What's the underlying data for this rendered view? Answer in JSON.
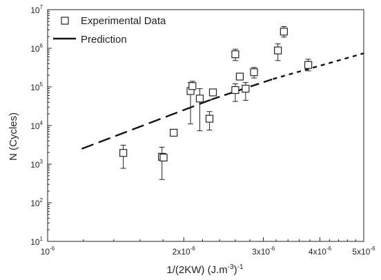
{
  "chart_data": {
    "type": "scatter",
    "title": "",
    "xlabel": "1/(2KW) (J.m",
    "xlabel_sup": "-3",
    "xlabel_tail": ")",
    "xlabel_sup2": "-1",
    "ylabel": "N (Cycles)",
    "x_scale": "log",
    "y_scale": "log",
    "xlim": [
      1e-06,
      5e-06
    ],
    "ylim": [
      10,
      10000000
    ],
    "grid": false,
    "legend_position": "top-left",
    "x_ticks": [
      {
        "value": 1e-06,
        "mantissa": "10",
        "exp": "-6"
      },
      {
        "value": 2e-06,
        "mantissa": "2x10",
        "exp": "-6"
      },
      {
        "value": 3e-06,
        "mantissa": "3x10",
        "exp": "-6"
      },
      {
        "value": 4e-06,
        "mantissa": "4x10",
        "exp": "-6"
      },
      {
        "value": 5e-06,
        "mantissa": "5x10",
        "exp": "-6"
      }
    ],
    "y_ticks": [
      {
        "value": 10,
        "mantissa": "10",
        "exp": "1"
      },
      {
        "value": 100,
        "mantissa": "10",
        "exp": "2"
      },
      {
        "value": 1000,
        "mantissa": "10",
        "exp": "3"
      },
      {
        "value": 10000,
        "mantissa": "10",
        "exp": "4"
      },
      {
        "value": 100000,
        "mantissa": "10",
        "exp": "5"
      },
      {
        "value": 1000000,
        "mantissa": "10",
        "exp": "6"
      },
      {
        "value": 10000000,
        "mantissa": "10",
        "exp": "7"
      }
    ],
    "series": [
      {
        "name": "Experimental Data",
        "marker": "open-square",
        "color": "#222222",
        "points": [
          {
            "x": 1.47e-06,
            "y": 1950,
            "ylow": 780,
            "yhigh": 3100
          },
          {
            "x": 1.79e-06,
            "y": 1550,
            "ylow": 400,
            "yhigh": 2750
          },
          {
            "x": 1.805e-06,
            "y": 1480,
            "ylow": 1480,
            "yhigh": 1480
          },
          {
            "x": 1.9e-06,
            "y": 6500,
            "ylow": 6500,
            "yhigh": 6500
          },
          {
            "x": 2.07e-06,
            "y": 78000,
            "ylow": 11000,
            "yhigh": 130000
          },
          {
            "x": 2.09e-06,
            "y": 105000,
            "ylow": 95000,
            "yhigh": 140000
          },
          {
            "x": 2.17e-06,
            "y": 50000,
            "ylow": 7300,
            "yhigh": 90000
          },
          {
            "x": 2.28e-06,
            "y": 15000,
            "ylow": 7600,
            "yhigh": 23000
          },
          {
            "x": 2.32e-06,
            "y": 72000,
            "ylow": 72000,
            "yhigh": 72000
          },
          {
            "x": 2.6e-06,
            "y": 700000,
            "ylow": 480000,
            "yhigh": 950000
          },
          {
            "x": 2.6e-06,
            "y": 83000,
            "ylow": 42000,
            "yhigh": 120000
          },
          {
            "x": 2.66e-06,
            "y": 185000,
            "ylow": 185000,
            "yhigh": 185000
          },
          {
            "x": 2.74e-06,
            "y": 90000,
            "ylow": 45000,
            "yhigh": 130000
          },
          {
            "x": 2.86e-06,
            "y": 240000,
            "ylow": 170000,
            "yhigh": 320000
          },
          {
            "x": 3.23e-06,
            "y": 880000,
            "ylow": 480000,
            "yhigh": 1300000
          },
          {
            "x": 3.33e-06,
            "y": 2700000,
            "ylow": 1950000,
            "yhigh": 3650000
          },
          {
            "x": 3.77e-06,
            "y": 370000,
            "ylow": 260000,
            "yhigh": 520000
          }
        ]
      },
      {
        "name": "Prediction",
        "type": "line",
        "color": "#111111",
        "x": [
          1.19e-06,
          2.3e-06,
          3.15e-06,
          5e-06
        ],
        "y": [
          2500,
          47000,
          160000,
          740000
        ]
      }
    ]
  }
}
